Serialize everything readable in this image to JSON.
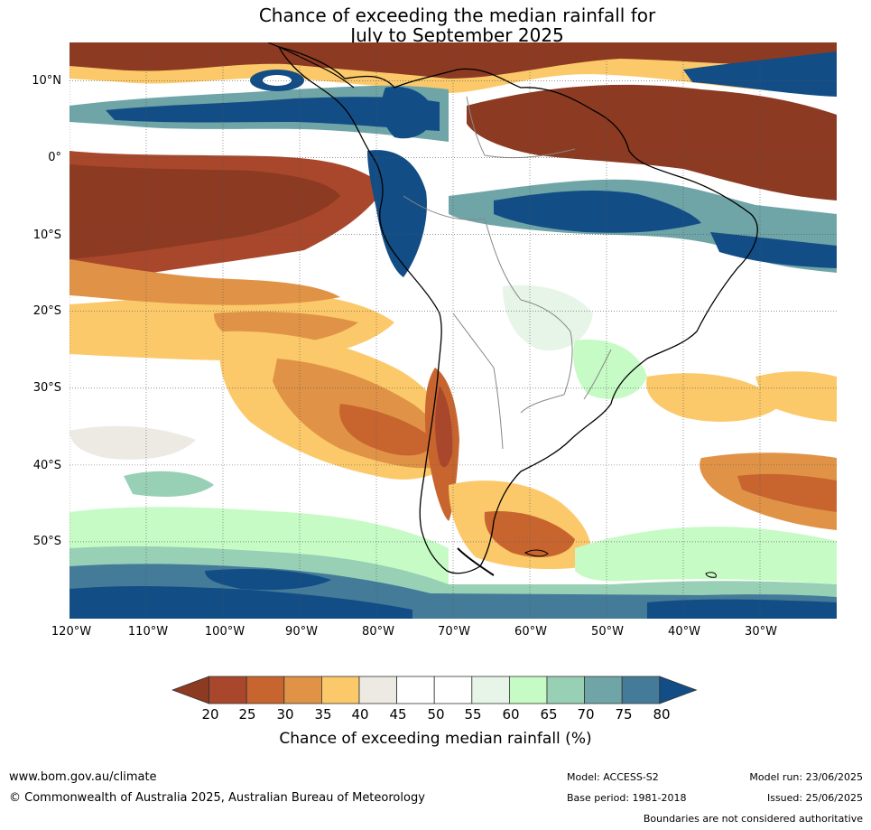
{
  "title": {
    "line1": "Chance of exceeding the median rainfall for",
    "line2": "July to September 2025"
  },
  "map": {
    "lat_labels": [
      "10°N",
      "0°",
      "10°S",
      "20°S",
      "30°S",
      "40°S",
      "50°S"
    ],
    "lon_labels": [
      "120°W",
      "110°W",
      "100°W",
      "90°W",
      "80°W",
      "70°W",
      "60°W",
      "50°W",
      "40°W",
      "30°W"
    ],
    "lat_values": [
      10,
      0,
      -10,
      -20,
      -30,
      -40,
      -50
    ],
    "lon_values": [
      -120,
      -110,
      -100,
      -90,
      -80,
      -70,
      -60,
      -50,
      -40,
      -30
    ],
    "extent": {
      "lon_min": -120,
      "lon_max": -20,
      "lat_min": -60,
      "lat_max": 15
    }
  },
  "colorbar": {
    "ticks": [
      "20",
      "25",
      "30",
      "35",
      "40",
      "45",
      "50",
      "55",
      "60",
      "65",
      "70",
      "75",
      "80"
    ],
    "colors": [
      "#8c3a22",
      "#a8472b",
      "#c8652f",
      "#e09346",
      "#fbc96a",
      "#eceae3",
      "#ffffff",
      "#ffffff",
      "#e6f5e8",
      "#c6fbc5",
      "#98d0b6",
      "#6fa5a7",
      "#447b99",
      "#124d86"
    ],
    "label": "Chance of exceeding median rainfall (%)"
  },
  "footer": {
    "website": "www.bom.gov.au/climate",
    "copyright": "© Commonwealth of Australia 2025, Australian Bureau of Meteorology",
    "model": "Model: ACCESS-S2",
    "base_period": "Base period: 1981-2018",
    "model_run": "Model run: 23/06/2025",
    "issued": "Issued: 25/06/2025",
    "disclaimer": "Boundaries are not considered authoritative"
  }
}
